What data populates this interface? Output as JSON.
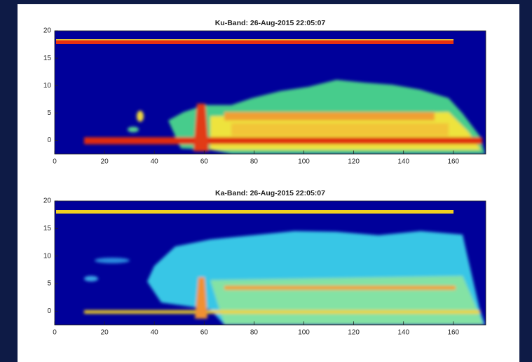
{
  "chart_data": [
    {
      "type": "heatmap",
      "title": "Ku-Band: 26-Aug-2015 22:05:07",
      "xlim": [
        0,
        173
      ],
      "ylim": [
        -2.5,
        20
      ],
      "xticks": [
        0,
        20,
        40,
        60,
        80,
        100,
        120,
        140,
        160
      ],
      "yticks": [
        0,
        5,
        10,
        15,
        20
      ]
    },
    {
      "type": "heatmap",
      "title": "Ka-Band: 26-Aug-2015 22:05:07",
      "xlim": [
        0,
        173
      ],
      "ylim": [
        -2.5,
        20
      ],
      "xticks": [
        0,
        20,
        40,
        60,
        80,
        100,
        120,
        140,
        160
      ],
      "yticks": [
        0,
        5,
        10,
        15,
        20
      ]
    }
  ]
}
